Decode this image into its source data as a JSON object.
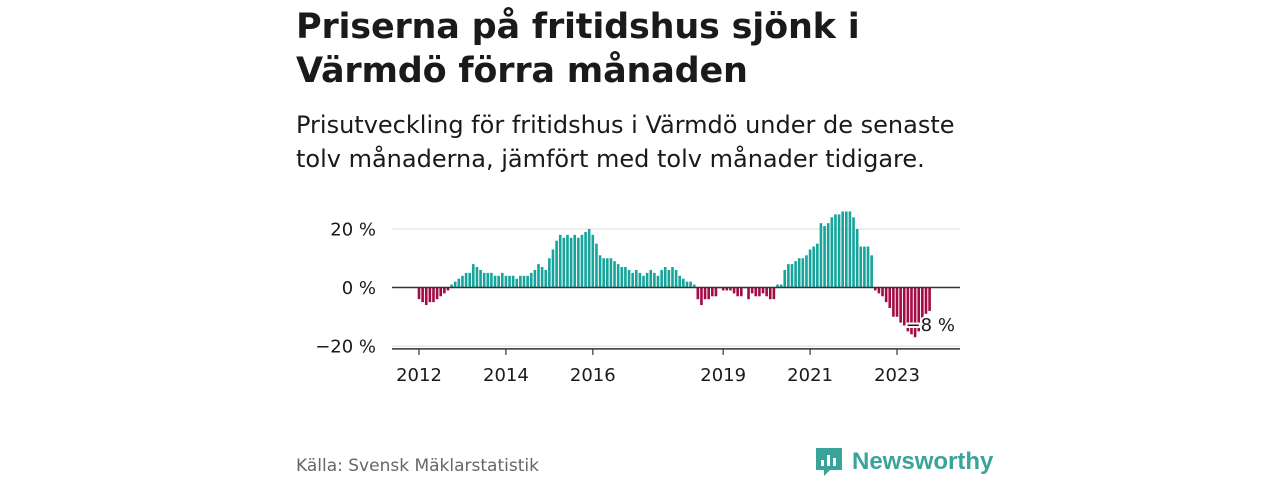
{
  "title": "Priserna på fritidshus sjönk i Värmdö förra månaden",
  "subtitle": "Prisutveckling för fritidshus i Värmdö under de senaste tolv månaderna, jämfört med tolv månader tidigare.",
  "source": "Källa: Svensk Mäklarstatistik",
  "brand": "Newsworthy",
  "colors": {
    "positive": "#15a59c",
    "negative": "#a50a45",
    "brand": "#3aa39a"
  },
  "chart_data": {
    "type": "bar",
    "ylim": [
      -21,
      26
    ],
    "yticks": [
      20,
      0,
      -20
    ],
    "ytick_labels": [
      "20 %",
      "0 %",
      "−20 %"
    ],
    "xticks": [
      2012,
      2014,
      2016,
      2019,
      2021,
      2023
    ],
    "xtick_labels": [
      "2012",
      "2014",
      "2016",
      "2019",
      "2021",
      "2023"
    ],
    "annotation": {
      "label": "−8 %",
      "value": -8
    },
    "start": {
      "year": 2012,
      "month": 1
    },
    "values": [
      -4,
      -5,
      -6,
      -5,
      -5,
      -4,
      -3,
      -2,
      -1,
      1,
      2,
      3,
      4,
      5,
      5,
      8,
      7,
      6,
      5,
      5,
      5,
      4,
      4,
      5,
      4,
      4,
      4,
      3,
      4,
      4,
      4,
      5,
      6,
      8,
      7,
      6,
      10,
      13,
      16,
      18,
      17,
      18,
      17,
      18,
      17,
      18,
      19,
      20,
      18,
      15,
      11,
      10,
      10,
      10,
      9,
      8,
      7,
      7,
      6,
      5,
      6,
      5,
      4,
      5,
      6,
      5,
      4,
      6,
      7,
      6,
      7,
      6,
      4,
      3,
      2,
      2,
      1,
      -4,
      -6,
      -4,
      -4,
      -3,
      -3,
      0,
      -1,
      -1,
      -1,
      -2,
      -3,
      -3,
      0,
      -4,
      -2,
      -3,
      -3,
      -2,
      -3,
      -4,
      -4,
      1,
      1,
      6,
      8,
      8,
      9,
      10,
      10,
      11,
      13,
      14,
      15,
      22,
      21,
      22,
      24,
      25,
      25,
      26,
      26,
      26,
      24,
      20,
      14,
      14,
      14,
      11,
      -1,
      -2,
      -3,
      -5,
      -7,
      -10,
      -10,
      -12,
      -13,
      -15,
      -16,
      -17,
      -15,
      -12,
      -9,
      -8
    ]
  }
}
